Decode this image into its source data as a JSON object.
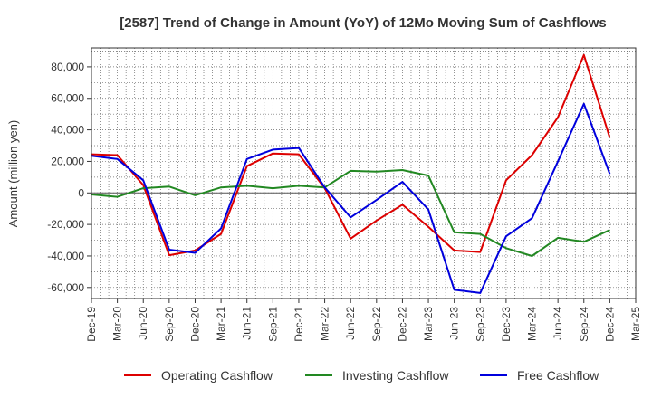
{
  "chart_data": {
    "type": "line",
    "title": "[2587]  Trend of Change in Amount (YoY) of 12Mo Moving Sum of Cashflows",
    "xlabel": "",
    "ylabel": "Amount (million yen)",
    "ylim": [
      -67000,
      92000
    ],
    "yticks": [
      -60000,
      -40000,
      -20000,
      0,
      20000,
      40000,
      60000,
      80000
    ],
    "ytick_labels": [
      "-60,000",
      "-40,000",
      "-20,000",
      "0",
      "20,000",
      "40,000",
      "60,000",
      "80,000"
    ],
    "categories": [
      "Dec-19",
      "Mar-20",
      "Jun-20",
      "Sep-20",
      "Dec-20",
      "Mar-21",
      "Jun-21",
      "Sep-21",
      "Dec-21",
      "Mar-22",
      "Jun-22",
      "Sep-22",
      "Dec-22",
      "Mar-23",
      "Jun-23",
      "Sep-23",
      "Dec-23",
      "Mar-24",
      "Jun-24",
      "Sep-24",
      "Dec-24",
      "Mar-25"
    ],
    "grid": true,
    "legend_position": "bottom",
    "series": [
      {
        "name": "Operating Cashflow",
        "color": "#dd0000",
        "values": [
          24500,
          24000,
          5000,
          -39500,
          -36500,
          -26000,
          17000,
          25000,
          24500,
          3000,
          -29000,
          -17500,
          -7500,
          -21500,
          -36500,
          -37500,
          8000,
          24000,
          48000,
          87500,
          35000,
          null
        ]
      },
      {
        "name": "Investing Cashflow",
        "color": "#228822",
        "values": [
          -1000,
          -2500,
          3000,
          4000,
          -1500,
          3500,
          4500,
          3000,
          4500,
          3500,
          14000,
          13500,
          14500,
          11000,
          -25000,
          -26000,
          -35000,
          -40000,
          -28500,
          -31000,
          -23500,
          null
        ]
      },
      {
        "name": "Free Cashflow",
        "color": "#0000dd",
        "values": [
          23500,
          21500,
          8000,
          -36000,
          -38000,
          -22500,
          21500,
          27500,
          28500,
          3500,
          -15500,
          -4500,
          7000,
          -10500,
          -61500,
          -63500,
          -27500,
          -16000,
          20000,
          56500,
          12000,
          null
        ]
      }
    ]
  }
}
